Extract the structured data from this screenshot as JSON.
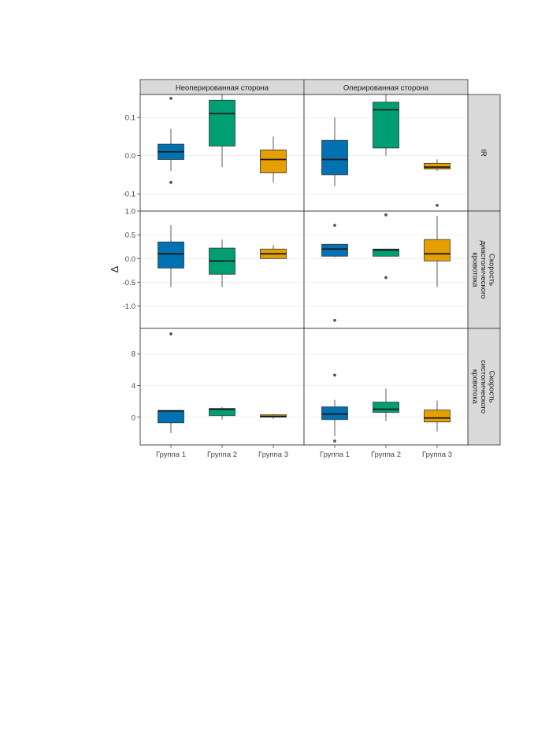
{
  "colors": {
    "group1": "#0072B2",
    "group2": "#009E73",
    "group3": "#E69F00",
    "strip_bg": "#D9D9D9",
    "grid": "#E3E3E3",
    "panel_border": "#333333",
    "whisker": "#333333",
    "outlier": "#555555"
  },
  "chart_data": {
    "type": "box",
    "ylabel": "Δ",
    "categories": [
      "Группа 1",
      "Группа 2",
      "Группа 3"
    ],
    "columns": [
      "Неоперированная сторона",
      "Оперированная сторона"
    ],
    "rows": [
      {
        "label": "IR",
        "label_lines": [
          "IR"
        ],
        "ylim": [
          -0.145,
          0.16
        ],
        "ticks": [
          {
            "value": 0.1,
            "label": "0.1"
          },
          {
            "value": 0.0,
            "label": "0.0"
          },
          {
            "value": -0.1,
            "label": "-0.1"
          }
        ]
      },
      {
        "label": "Скорость диастолического кровотока",
        "label_lines": [
          "Скорость",
          "диастолического",
          "кровотока"
        ],
        "ylim": [
          -1.47,
          1.0
        ],
        "ticks": [
          {
            "value": 1.0,
            "label": "1.0"
          },
          {
            "value": 0.5,
            "label": "0.5"
          },
          {
            "value": 0.0,
            "label": "0.0"
          },
          {
            "value": -0.5,
            "label": "-0.5"
          },
          {
            "value": -1.0,
            "label": "-1.0"
          }
        ]
      },
      {
        "label": "Скорость систолического кровотока",
        "label_lines": [
          "Скорость",
          "систолического",
          "кровотока"
        ],
        "ylim": [
          -3.5,
          11.2
        ],
        "ticks": [
          {
            "value": 8,
            "label": "8"
          },
          {
            "value": 4,
            "label": "4"
          },
          {
            "value": 0,
            "label": "0"
          }
        ]
      }
    ],
    "boxes": [
      [
        [
          {
            "min": -0.04,
            "q1": -0.01,
            "median": 0.01,
            "q3": 0.03,
            "max": 0.07,
            "outliers": [
              0.15,
              -0.07
            ]
          },
          {
            "min": -0.03,
            "q1": 0.025,
            "median": 0.11,
            "q3": 0.145,
            "max": 0.16,
            "outliers": []
          },
          {
            "min": -0.07,
            "q1": -0.045,
            "median": -0.01,
            "q3": 0.015,
            "max": 0.05,
            "outliers": []
          }
        ],
        [
          {
            "min": -0.08,
            "q1": -0.05,
            "median": -0.01,
            "q3": 0.04,
            "max": 0.1,
            "outliers": []
          },
          {
            "min": 0.0,
            "q1": 0.02,
            "median": 0.12,
            "q3": 0.14,
            "max": 0.16,
            "outliers": []
          },
          {
            "min": -0.04,
            "q1": -0.035,
            "median": -0.03,
            "q3": -0.02,
            "max": -0.01,
            "outliers": [
              -0.13
            ]
          }
        ]
      ],
      [
        [
          {
            "min": -0.6,
            "q1": -0.2,
            "median": 0.1,
            "q3": 0.35,
            "max": 0.7,
            "outliers": []
          },
          {
            "min": -0.6,
            "q1": -0.33,
            "median": -0.05,
            "q3": 0.22,
            "max": 0.4,
            "outliers": []
          },
          {
            "min": 0.0,
            "q1": 0.0,
            "median": 0.1,
            "q3": 0.2,
            "max": 0.28,
            "outliers": []
          }
        ],
        [
          {
            "min": 0.03,
            "q1": 0.05,
            "median": 0.2,
            "q3": 0.3,
            "max": 0.3,
            "outliers": [
              0.7,
              -1.3
            ]
          },
          {
            "min": 0.05,
            "q1": 0.05,
            "median": 0.18,
            "q3": 0.2,
            "max": 0.2,
            "outliers": [
              0.92,
              -0.4
            ]
          },
          {
            "min": -0.6,
            "q1": -0.05,
            "median": 0.1,
            "q3": 0.4,
            "max": 0.9,
            "outliers": []
          }
        ]
      ],
      [
        [
          {
            "min": -2.0,
            "q1": -0.7,
            "median": 0.8,
            "q3": 0.8,
            "max": 0.8,
            "outliers": [
              10.5
            ]
          },
          {
            "min": -0.3,
            "q1": 0.2,
            "median": 1.0,
            "q3": 1.1,
            "max": 1.3,
            "outliers": []
          },
          {
            "min": -0.2,
            "q1": 0.0,
            "median": 0.1,
            "q3": 0.3,
            "max": 0.4,
            "outliers": []
          }
        ],
        [
          {
            "min": -2.4,
            "q1": -0.3,
            "median": 0.4,
            "q3": 1.3,
            "max": 2.2,
            "outliers": [
              5.3,
              -3.0
            ]
          },
          {
            "min": -0.5,
            "q1": 0.6,
            "median": 1.0,
            "q3": 1.9,
            "max": 3.6,
            "outliers": []
          },
          {
            "min": -1.8,
            "q1": -0.6,
            "median": -0.1,
            "q3": 0.9,
            "max": 2.1,
            "outliers": []
          }
        ]
      ]
    ]
  }
}
